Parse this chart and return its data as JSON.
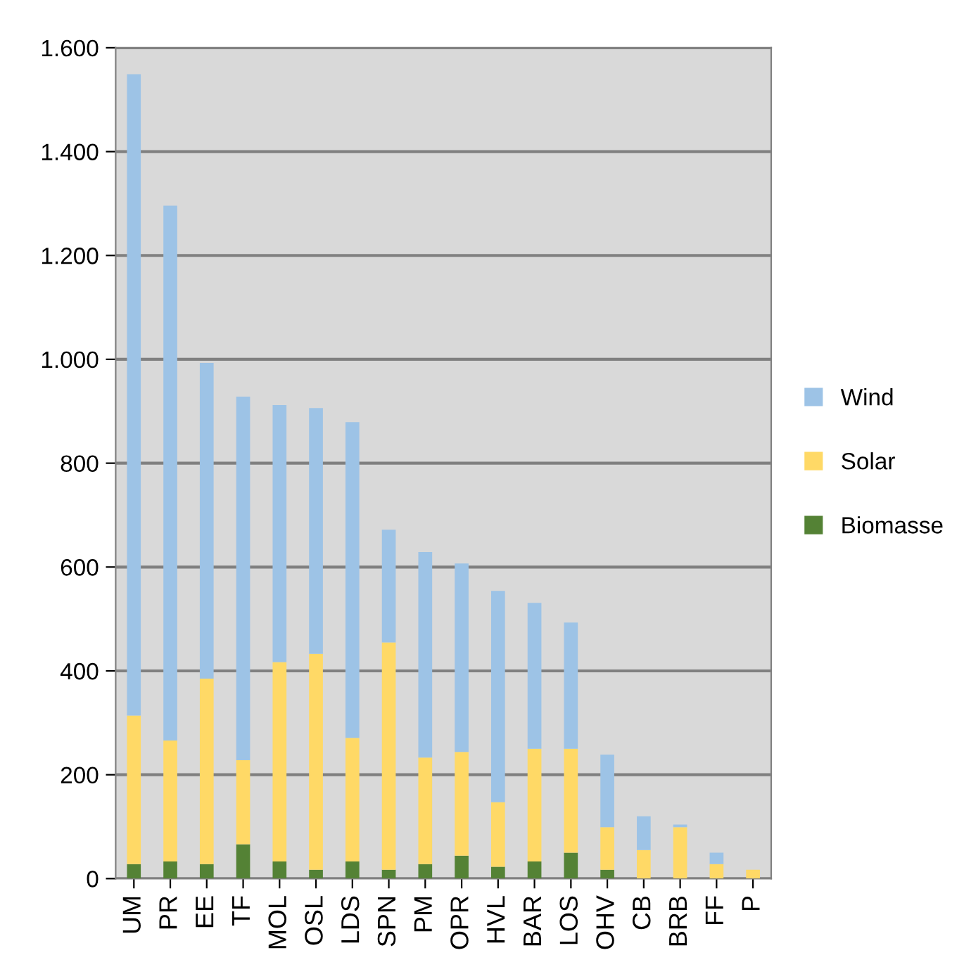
{
  "chart_data": {
    "type": "bar",
    "stacked": true,
    "categories": [
      "UM",
      "PR",
      "EE",
      "TF",
      "MOL",
      "OSL",
      "LDS",
      "SPN",
      "PM",
      "OPR",
      "HVL",
      "BAR",
      "LOS",
      "OHV",
      "CB",
      "BRB",
      "FF",
      "P"
    ],
    "series": [
      {
        "name": "Biomasse",
        "color": "#548235",
        "values": [
          28,
          33,
          28,
          66,
          33,
          17,
          33,
          17,
          28,
          44,
          23,
          33,
          50,
          17,
          0,
          0,
          0,
          0
        ]
      },
      {
        "name": "Solar",
        "color": "#ffd966",
        "values": [
          286,
          233,
          357,
          162,
          384,
          416,
          238,
          438,
          205,
          200,
          124,
          217,
          200,
          82,
          55,
          99,
          28,
          17
        ]
      },
      {
        "name": "Wind",
        "color": "#9dc3e6",
        "values": [
          1235,
          1030,
          608,
          700,
          495,
          473,
          608,
          217,
          396,
          363,
          407,
          281,
          243,
          140,
          65,
          5,
          22,
          0
        ]
      }
    ],
    "ylim": [
      0,
      1600
    ],
    "yticks": [
      0,
      200,
      400,
      600,
      800,
      {
        "value": 1000,
        "label": "1.000"
      },
      {
        "value": 1200,
        "label": "1.200"
      },
      {
        "value": 1400,
        "label": "1.400"
      },
      {
        "value": 1600,
        "label": "1.600"
      }
    ],
    "grid": "y",
    "legend": "right"
  }
}
